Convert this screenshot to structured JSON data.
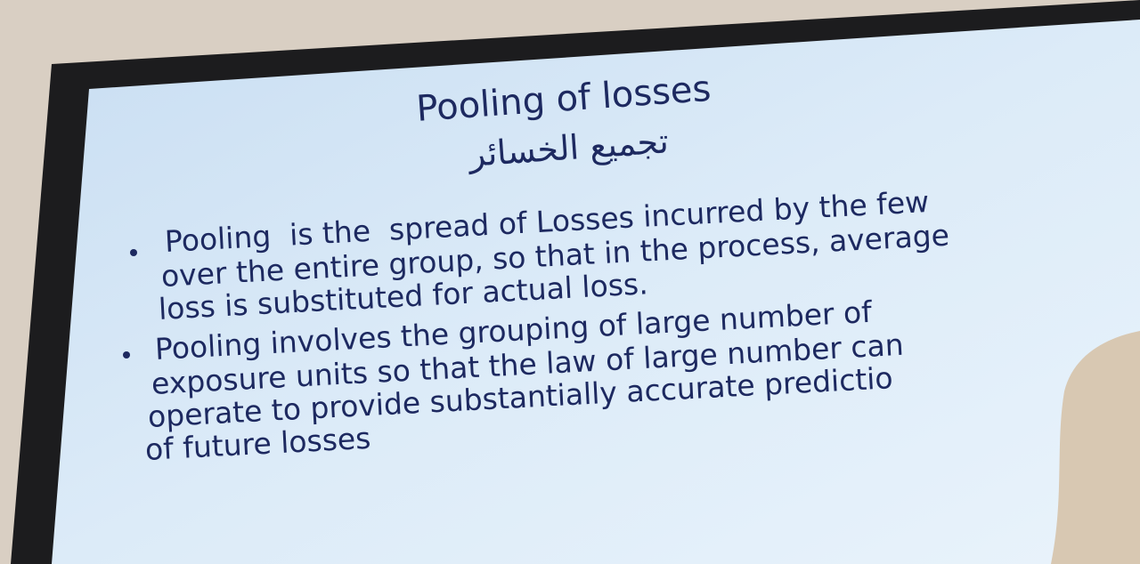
{
  "slide": {
    "title": "Pooling of losses",
    "subtitle": "تجميع الخسائر",
    "bullets": [
      {
        "lines": [
          "Pooling  is the  spread of Losses incurred by the few",
          "over the entire group, so that in the process, average",
          "loss is substituted for actual loss."
        ]
      },
      {
        "lines": [
          "Pooling involves the grouping of large number of",
          "exposure units so that the law of large number can",
          "operate to provide substantially accurate predictio",
          "of future losses"
        ]
      }
    ]
  }
}
